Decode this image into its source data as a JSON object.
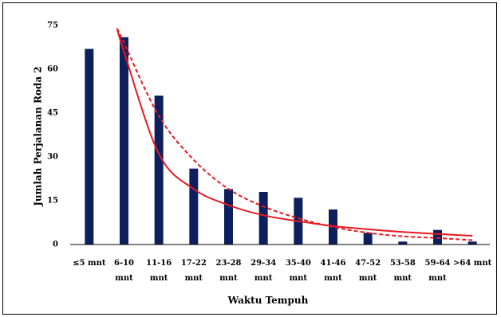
{
  "chart_data": {
    "type": "bar",
    "title": "",
    "xlabel": "Waktu Tempuh",
    "ylabel": "Jumlah Perjalanan Roda 2",
    "ylim": [
      0,
      75
    ],
    "yticks": [
      "0",
      "15",
      "30",
      "45",
      "60",
      "75"
    ],
    "grid": false,
    "legend": "none",
    "categories": [
      [
        "≤5 mnt"
      ],
      [
        "6-10",
        "mnt"
      ],
      [
        "11-16",
        "mnt"
      ],
      [
        "17-22",
        "mnt"
      ],
      [
        "23-28",
        "mnt"
      ],
      [
        "29-34",
        "mnt"
      ],
      [
        "35-40",
        "mnt"
      ],
      [
        "41-46",
        "mnt"
      ],
      [
        "47-52",
        "mnt"
      ],
      [
        "53-58",
        "mnt"
      ],
      [
        "59-64",
        "mnt"
      ],
      [
        ">64 mnt"
      ]
    ],
    "series": [
      {
        "values": [
          67,
          71,
          51,
          26,
          19,
          18,
          16,
          12,
          4,
          1,
          5,
          1
        ],
        "color": "#0d1f5c"
      }
    ],
    "trendlines": [
      {
        "style": "solid",
        "color": "#e8191f",
        "x": [
          1.8,
          2,
          3,
          4,
          5,
          6,
          7,
          8,
          9,
          10,
          11,
          12
        ],
        "y": [
          74,
          66,
          31,
          19,
          13.5,
          10,
          8,
          6.3,
          5.2,
          4.3,
          3.6,
          3
        ]
      },
      {
        "style": "dashed",
        "color": "#e8191f",
        "x": [
          1.8,
          2,
          3,
          4,
          5,
          6,
          7,
          8,
          9,
          10,
          11,
          12
        ],
        "y": [
          74,
          69,
          44,
          29,
          19,
          13,
          9,
          6,
          4,
          2.8,
          2.2,
          1.5
        ]
      }
    ]
  }
}
